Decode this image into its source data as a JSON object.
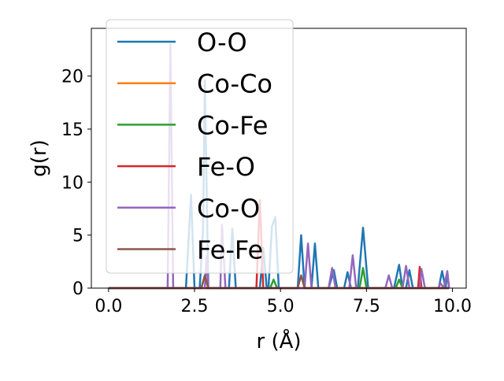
{
  "chart_data": {
    "type": "line",
    "xlabel": "r (Å)",
    "ylabel": "g(r)",
    "xlim": [
      -0.5,
      10.4
    ],
    "ylim": [
      0,
      24.5
    ],
    "xticks": [
      0.0,
      2.5,
      5.0,
      7.5,
      10.0
    ],
    "xtick_labels": [
      "0.0",
      "2.5",
      "5.0",
      "7.5",
      "10.0"
    ],
    "yticks": [
      0,
      5,
      10,
      15,
      20
    ],
    "ytick_labels": [
      "0",
      "5",
      "10",
      "15",
      "20"
    ],
    "grid": false,
    "legend_placement": "upper-left",
    "series": [
      {
        "name": "O-O",
        "color": "#1f77b4",
        "points": [
          [
            0,
            0
          ],
          [
            2.25,
            0
          ],
          [
            2.4,
            8.8
          ],
          [
            2.5,
            0
          ],
          [
            2.65,
            0
          ],
          [
            2.75,
            5.5
          ],
          [
            2.8,
            19.6
          ],
          [
            2.9,
            0
          ],
          [
            3.5,
            0
          ],
          [
            3.6,
            5.6
          ],
          [
            3.7,
            0
          ],
          [
            4.4,
            0
          ],
          [
            4.5,
            3.8
          ],
          [
            4.6,
            0
          ],
          [
            4.65,
            0
          ],
          [
            4.75,
            5.8
          ],
          [
            4.85,
            6.7
          ],
          [
            4.95,
            0
          ],
          [
            5.5,
            0
          ],
          [
            5.6,
            5.0
          ],
          [
            5.7,
            0
          ],
          [
            5.9,
            0
          ],
          [
            6.0,
            4.2
          ],
          [
            6.1,
            0
          ],
          [
            6.4,
            0
          ],
          [
            6.55,
            1.7
          ],
          [
            6.65,
            0
          ],
          [
            6.85,
            0
          ],
          [
            6.95,
            1.5
          ],
          [
            7.05,
            0
          ],
          [
            7.25,
            0
          ],
          [
            7.4,
            5.7
          ],
          [
            7.55,
            0
          ],
          [
            8.3,
            0
          ],
          [
            8.45,
            2.2
          ],
          [
            8.55,
            0
          ],
          [
            8.65,
            0
          ],
          [
            8.75,
            1.7
          ],
          [
            8.85,
            0
          ],
          [
            9.6,
            0
          ],
          [
            9.7,
            1.6
          ],
          [
            9.8,
            0
          ],
          [
            9.85,
            1.5
          ],
          [
            9.9,
            0
          ]
        ]
      },
      {
        "name": "Co-Co",
        "color": "#ff7f0e",
        "points": [
          [
            0,
            0
          ],
          [
            9.9,
            0
          ]
        ]
      },
      {
        "name": "Co-Fe",
        "color": "#2ca02c",
        "points": [
          [
            0,
            0
          ],
          [
            4.7,
            0
          ],
          [
            4.8,
            0.8
          ],
          [
            4.9,
            0
          ],
          [
            7.3,
            0
          ],
          [
            7.4,
            1.9
          ],
          [
            7.5,
            0
          ],
          [
            8.35,
            0
          ],
          [
            8.45,
            0.8
          ],
          [
            8.55,
            0
          ],
          [
            9.9,
            0
          ]
        ]
      },
      {
        "name": "Fe-O",
        "color": "#d62728",
        "points": [
          [
            0,
            0
          ],
          [
            4.3,
            0
          ],
          [
            4.4,
            8.3
          ],
          [
            4.5,
            0
          ],
          [
            9.0,
            0
          ],
          [
            9.05,
            2.0
          ],
          [
            9.1,
            0
          ],
          [
            9.9,
            0
          ]
        ]
      },
      {
        "name": "Co-O",
        "color": "#9467bd",
        "points": [
          [
            0,
            0
          ],
          [
            1.72,
            0
          ],
          [
            1.8,
            23.0
          ],
          [
            1.88,
            0
          ],
          [
            2.8,
            0
          ],
          [
            2.85,
            3.0
          ],
          [
            2.9,
            0
          ],
          [
            3.25,
            0
          ],
          [
            3.3,
            6.0
          ],
          [
            3.4,
            0
          ],
          [
            5.7,
            0
          ],
          [
            5.8,
            4.2
          ],
          [
            5.9,
            0
          ],
          [
            6.4,
            0
          ],
          [
            6.5,
            1.9
          ],
          [
            6.6,
            0
          ],
          [
            7.0,
            0
          ],
          [
            7.1,
            3.1
          ],
          [
            7.2,
            0
          ],
          [
            8.05,
            0
          ],
          [
            8.15,
            1.2
          ],
          [
            8.25,
            0
          ],
          [
            8.55,
            0
          ],
          [
            8.65,
            2.1
          ],
          [
            8.75,
            0
          ],
          [
            9.05,
            0
          ],
          [
            9.1,
            1.8
          ],
          [
            9.2,
            0
          ],
          [
            9.6,
            0
          ],
          [
            9.65,
            0.5
          ],
          [
            9.75,
            0
          ],
          [
            9.85,
            1.6
          ],
          [
            9.9,
            0
          ]
        ]
      },
      {
        "name": "Fe-Fe",
        "color": "#8c564b",
        "points": [
          [
            0,
            0
          ],
          [
            2.7,
            0
          ],
          [
            2.8,
            1.2
          ],
          [
            2.9,
            0
          ],
          [
            5.5,
            0
          ],
          [
            5.6,
            1.2
          ],
          [
            5.7,
            0
          ],
          [
            9.9,
            0
          ]
        ]
      }
    ]
  }
}
